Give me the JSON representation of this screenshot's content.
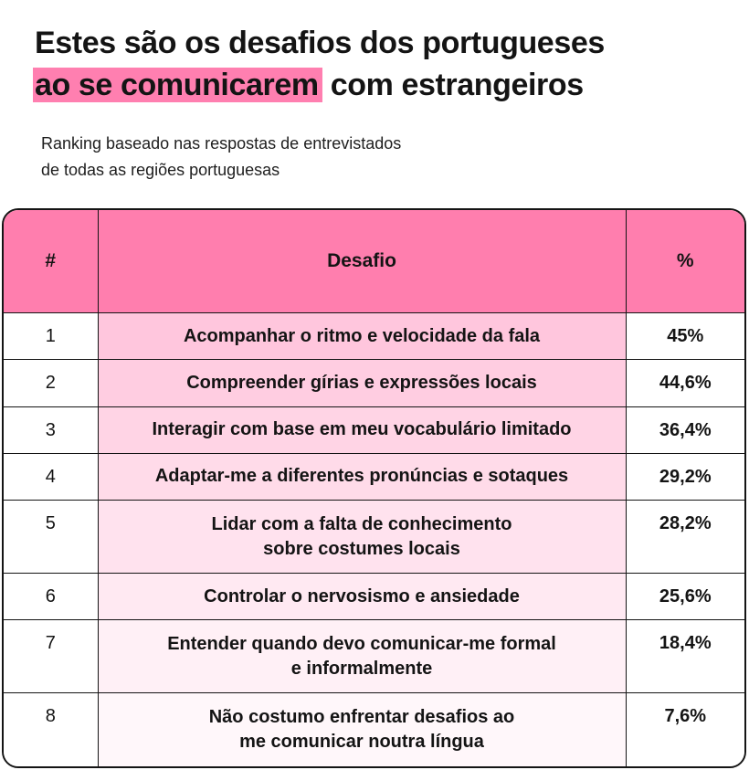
{
  "title": {
    "line1": "Estes são os desafios dos portugueses",
    "line2_highlight": "ao se comunicarem",
    "line2_rest": " com estrangeiros"
  },
  "subtitle": {
    "line1": "Ranking baseado nas respostas de entrevistados",
    "line2": "de todas as regiões portuguesas"
  },
  "colors": {
    "header_bg": "#ff7eae",
    "highlight": "#ff7fb0",
    "row_tint_start": "#ffc6dd",
    "row_tint_end": "#fff7fa"
  },
  "chart_data": {
    "type": "table",
    "columns": [
      "#",
      "Desafio",
      "%"
    ],
    "rows": [
      {
        "rank": "1",
        "desafio": [
          "Acompanhar o ritmo e velocidade da fala"
        ],
        "pct": "45%"
      },
      {
        "rank": "2",
        "desafio": [
          "Compreender gírias e expressões locais"
        ],
        "pct": "44,6%"
      },
      {
        "rank": "3",
        "desafio": [
          "Interagir com base em meu vocabulário limitado"
        ],
        "pct": "36,4%"
      },
      {
        "rank": "4",
        "desafio": [
          "Adaptar-me a diferentes pronúncias e sotaques"
        ],
        "pct": "29,2%"
      },
      {
        "rank": "5",
        "desafio": [
          "Lidar com a falta de conhecimento",
          "sobre costumes locais"
        ],
        "pct": "28,2%"
      },
      {
        "rank": "6",
        "desafio": [
          "Controlar o nervosismo e ansiedade"
        ],
        "pct": "25,6%"
      },
      {
        "rank": "7",
        "desafio": [
          "Entender quando devo comunicar-me formal",
          "e informalmente"
        ],
        "pct": "18,4%"
      },
      {
        "rank": "8",
        "desafio": [
          "Não costumo enfrentar desafios ao",
          "me comunicar noutra língua"
        ],
        "pct": "7,6%"
      }
    ]
  }
}
